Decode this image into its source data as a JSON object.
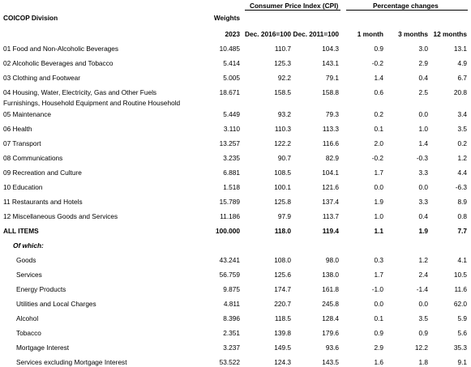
{
  "header": {
    "division": "COICOP Division",
    "weights": "Weights",
    "year": "2023",
    "cpi_group": "Consumer Price Index (CPI)",
    "pct_group": "Percentage changes",
    "col_dec2016": "Dec. 2016=100",
    "col_dec2011": "Dec. 2011=100",
    "col_1m": "1 month",
    "col_3m": "3 months",
    "col_12m": "12 months"
  },
  "rows": [
    {
      "name": "01 Food and Non-Alcoholic Beverages",
      "w": "10.485",
      "a": "110.7",
      "b": "104.3",
      "m1": "0.9",
      "m3": "3.0",
      "m12": "13.1"
    },
    {
      "name": "02 Alcoholic Beverages and Tobacco",
      "w": "5.414",
      "a": "125.3",
      "b": "143.1",
      "m1": "-0.2",
      "m3": "2.9",
      "m12": "4.9"
    },
    {
      "name": "03 Clothing and Footwear",
      "w": "5.005",
      "a": "92.2",
      "b": "79.1",
      "m1": "1.4",
      "m3": "0.4",
      "m12": "6.7"
    },
    {
      "name": "04 Housing, Water, Electricity, Gas and Other Fuels",
      "w": "18.671",
      "a": "158.5",
      "b": "158.8",
      "m1": "0.6",
      "m3": "2.5",
      "m12": "20.8"
    },
    {
      "name": "Furnishings, Household Equipment and Routine Household",
      "w": "",
      "a": "",
      "b": "",
      "m1": "",
      "m3": "",
      "m12": ""
    },
    {
      "name": "05 Maintenance",
      "w": "5.449",
      "a": "93.2",
      "b": "79.3",
      "m1": "0.2",
      "m3": "0.0",
      "m12": "3.4"
    },
    {
      "name": "06 Health",
      "w": "3.110",
      "a": "110.3",
      "b": "113.3",
      "m1": "0.1",
      "m3": "1.0",
      "m12": "3.5"
    },
    {
      "name": "07 Transport",
      "w": "13.257",
      "a": "122.2",
      "b": "116.6",
      "m1": "2.0",
      "m3": "1.4",
      "m12": "0.2"
    },
    {
      "name": "08 Communications",
      "w": "3.235",
      "a": "90.7",
      "b": "82.9",
      "m1": "-0.2",
      "m3": "-0.3",
      "m12": "1.2"
    },
    {
      "name": "09 Recreation and Culture",
      "w": "6.881",
      "a": "108.5",
      "b": "104.1",
      "m1": "1.7",
      "m3": "3.3",
      "m12": "4.4"
    },
    {
      "name": "10 Education",
      "w": "1.518",
      "a": "100.1",
      "b": "121.6",
      "m1": "0.0",
      "m3": "0.0",
      "m12": "-6.3"
    },
    {
      "name": "11 Restaurants and Hotels",
      "w": "15.789",
      "a": "125.8",
      "b": "137.4",
      "m1": "1.9",
      "m3": "3.3",
      "m12": "8.9"
    },
    {
      "name": "12 Miscellaneous Goods and Services",
      "w": "11.186",
      "a": "97.9",
      "b": "113.7",
      "m1": "1.0",
      "m3": "0.4",
      "m12": "0.8"
    },
    {
      "name": "ALL ITEMS",
      "w": "100.000",
      "a": "118.0",
      "b": "119.4",
      "m1": "1.1",
      "m3": "1.9",
      "m12": "7.7"
    },
    {
      "name": "Of which:",
      "w": "",
      "a": "",
      "b": "",
      "m1": "",
      "m3": "",
      "m12": ""
    },
    {
      "name": "Goods",
      "w": "43.241",
      "a": "108.0",
      "b": "98.0",
      "m1": "0.3",
      "m3": "1.2",
      "m12": "4.1"
    },
    {
      "name": "Services",
      "w": "56.759",
      "a": "125.6",
      "b": "138.0",
      "m1": "1.7",
      "m3": "2.4",
      "m12": "10.5"
    },
    {
      "name": "Energy Products",
      "w": "9.875",
      "a": "174.7",
      "b": "161.8",
      "m1": "-1.0",
      "m3": "-1.4",
      "m12": "11.6"
    },
    {
      "name": "Utilities and Local Charges",
      "w": "4.811",
      "a": "220.7",
      "b": "245.8",
      "m1": "0.0",
      "m3": "0.0",
      "m12": "62.0"
    },
    {
      "name": "Alcohol",
      "w": "8.396",
      "a": "118.5",
      "b": "128.4",
      "m1": "0.1",
      "m3": "3.5",
      "m12": "5.9"
    },
    {
      "name": "Tobacco",
      "w": "2.351",
      "a": "139.8",
      "b": "179.6",
      "m1": "0.9",
      "m3": "0.9",
      "m12": "5.6"
    },
    {
      "name": "Mortgage Interest",
      "w": "3.237",
      "a": "149.5",
      "b": "93.6",
      "m1": "2.9",
      "m3": "12.2",
      "m12": "35.3"
    },
    {
      "name": "Services excluding Mortgage Interest",
      "w": "53.522",
      "a": "124.3",
      "b": "143.5",
      "m1": "1.6",
      "m3": "1.8",
      "m12": "9.1"
    }
  ]
}
